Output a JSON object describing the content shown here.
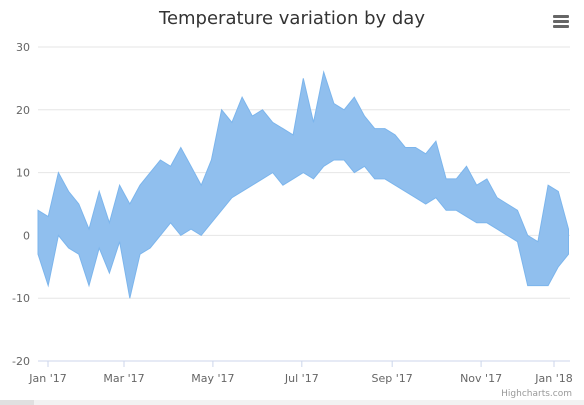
{
  "chart_data": {
    "type": "area",
    "subtype": "arearange",
    "title": "Temperature variation by day",
    "xlabel": "",
    "ylabel": "",
    "ylim": [
      -20,
      30
    ],
    "yticks": [
      "30",
      "20",
      "10",
      "0",
      "-10",
      "-20"
    ],
    "xticks": [
      "Jan '17",
      "Mar '17",
      "May '17",
      "Jul '17",
      "Sep '17",
      "Nov '17",
      "Jan '18"
    ],
    "grid": true,
    "legend": "none",
    "color": "#7cb5ec",
    "fill_color": "#90bfee",
    "series": [
      {
        "x": [
          "2017-01-01",
          "2017-01-08",
          "2017-01-15",
          "2017-01-22",
          "2017-01-29",
          "2017-02-05",
          "2017-02-12",
          "2017-02-19",
          "2017-02-26",
          "2017-03-05",
          "2017-03-12",
          "2017-03-19",
          "2017-03-26",
          "2017-04-02",
          "2017-04-09",
          "2017-04-16",
          "2017-04-23",
          "2017-04-30",
          "2017-05-07",
          "2017-05-14",
          "2017-05-21",
          "2017-05-28",
          "2017-06-04",
          "2017-06-11",
          "2017-06-18",
          "2017-06-25",
          "2017-07-02",
          "2017-07-09",
          "2017-07-16",
          "2017-07-23",
          "2017-07-30",
          "2017-08-06",
          "2017-08-13",
          "2017-08-20",
          "2017-08-27",
          "2017-09-03",
          "2017-09-10",
          "2017-09-17",
          "2017-09-24",
          "2017-10-01",
          "2017-10-08",
          "2017-10-15",
          "2017-10-22",
          "2017-10-29",
          "2017-11-05",
          "2017-11-12",
          "2017-11-19",
          "2017-11-26",
          "2017-12-03",
          "2017-12-10",
          "2017-12-17",
          "2017-12-24",
          "2017-12-31"
        ],
        "low": [
          -3,
          -8,
          0,
          -2,
          -3,
          -8,
          -2,
          -6,
          -1,
          -10,
          -3,
          -2,
          0,
          2,
          0,
          1,
          0,
          2,
          4,
          6,
          7,
          8,
          9,
          10,
          8,
          9,
          10,
          9,
          11,
          12,
          12,
          10,
          11,
          9,
          9,
          8,
          7,
          6,
          5,
          6,
          4,
          4,
          3,
          2,
          2,
          1,
          0,
          -1,
          -8,
          -8,
          -8,
          -5,
          -3
        ],
        "high": [
          4,
          3,
          10,
          7,
          5,
          1,
          7,
          2,
          8,
          5,
          8,
          10,
          12,
          11,
          14,
          11,
          8,
          12,
          20,
          18,
          22,
          19,
          20,
          18,
          17,
          16,
          25,
          18,
          26,
          21,
          20,
          22,
          19,
          17,
          17,
          16,
          14,
          14,
          13,
          15,
          9,
          9,
          11,
          8,
          9,
          6,
          5,
          4,
          0,
          -1,
          8,
          7,
          1
        ]
      }
    ]
  },
  "credits": "Highcharts.com"
}
